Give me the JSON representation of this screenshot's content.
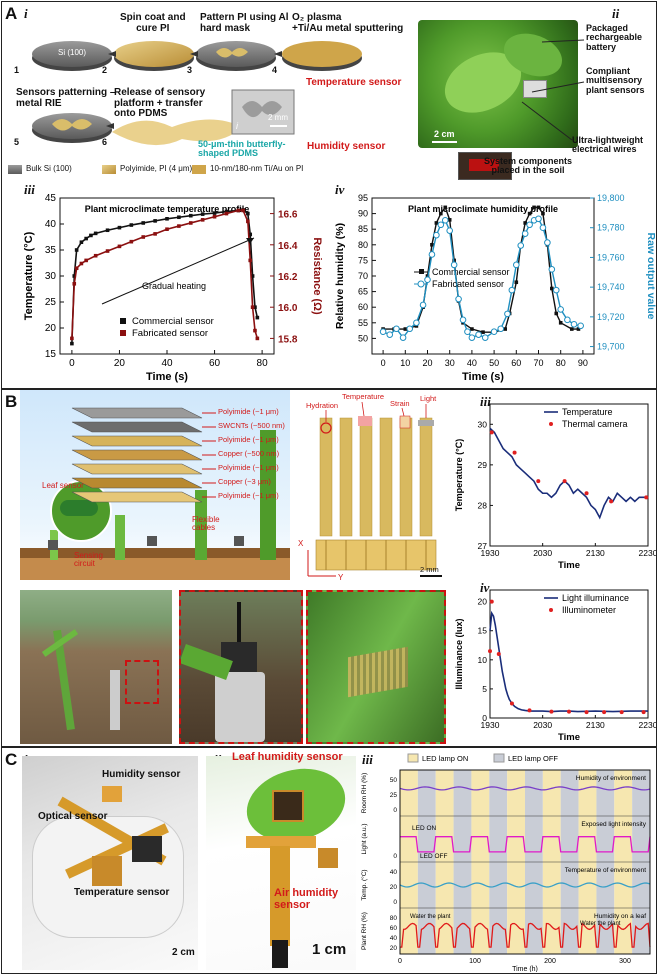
{
  "panelA": {
    "label": "A",
    "i": {
      "sub": "i",
      "steps": [
        {
          "num": "1",
          "text": "Si (100)"
        },
        {
          "num": "2",
          "text": "Spin coat and\ncure PI"
        },
        {
          "num": "3",
          "text": "Pattern PI using Al\nhard mask"
        },
        {
          "num": "4",
          "text": "O₂ plasma\n+Ti/Au metal sputtering"
        },
        {
          "num": "5",
          "text": "Sensors patterning –\nmetal RIE"
        },
        {
          "num": "6",
          "text": "Release of sensory\nplatform + transfer\nonto PDMS"
        }
      ],
      "temp_sensor": "Temperature sensor",
      "humidity_sensor": "Humidity sensor",
      "pdms": "50-μm-thin butterfly-\nshaped PDMS",
      "inset_label": "i",
      "scale": "2 mm",
      "legend": [
        "Bulk Si (100)",
        "Polyimide, PI (4 μm)",
        "10-nm/180-nm Ti/Au on PI"
      ]
    },
    "ii": {
      "sub": "ii",
      "labels": [
        "Packaged\nrechargeable\nbattery",
        "Compliant\nmultisensory\nplant sensors",
        "Ultra-lightweight\nelectrical wires",
        "System components\nplaced in the soil"
      ],
      "scale": "2 cm"
    },
    "iii": {
      "sub": "iii"
    },
    "iv": {
      "sub": "iv"
    }
  },
  "panelB": {
    "label": "B",
    "i": {
      "sub": "i",
      "layers": [
        "Polyimide (~1 μm)",
        "SWCNTs (~500 nm)",
        "Polyimide (~1 μm)",
        "Copper (~500 nm)",
        "Polyimide (~1 μm)",
        "Copper (~3 μm)",
        "Polyimide (~1 μm)"
      ],
      "leaf_sensor": "Leaf sensor",
      "flexible": "Flexible\ncables",
      "sensing": "Sensing\ncircuit",
      "sensor_tags": [
        "Hydration",
        "Temperature",
        "Strain",
        "Light"
      ],
      "axis_x": "X",
      "axis_y": "Y",
      "scale": "2 mm"
    },
    "ii": {
      "sub": "ii"
    },
    "iii": {
      "sub": "iii"
    },
    "iv": {
      "sub": "iv"
    }
  },
  "panelC": {
    "label": "C",
    "i": {
      "sub": "i",
      "humidity": "Humidity sensor",
      "optical": "Optical sensor",
      "temperature": "Temperature sensor",
      "scale": "2 cm"
    },
    "ii": {
      "sub": "ii",
      "leaf": "Leaf humidity sensor",
      "air": "Air humidity\nsensor",
      "scale": "1 cm"
    },
    "iii": {
      "sub": "iii",
      "legend_on": "LED lamp ON",
      "legend_off": "LED lamp OFF",
      "tracks": [
        "Humidity of environment",
        "Exposed light intensity",
        "Temperature of environment",
        "Humidity on a leaf"
      ],
      "annotations": [
        "LED ON",
        "LED OFF",
        "Water the plant",
        "Water the plant"
      ],
      "ylabels": [
        "Room RH (%)",
        "Light (a.u.)",
        "Temp. (°C)",
        "Plant RH (%)"
      ],
      "yticks": [
        [
          "50",
          "25",
          "0"
        ],
        [
          "0"
        ],
        [
          "40",
          "20",
          "0"
        ],
        [
          "80",
          "60",
          "40",
          "20"
        ]
      ],
      "xticks": [
        "0",
        "100",
        "200",
        "300"
      ],
      "xlabel": "Time (h)"
    }
  },
  "chart_data": [
    {
      "type": "line",
      "title": "Plant microclimate temperature profile",
      "xlabel": "Time (s)",
      "ylabel": "Temperature (°C)",
      "y2label": "Resistance (Ω)",
      "xlim": [
        -5,
        85
      ],
      "ylim": [
        15,
        45
      ],
      "y2lim": [
        15.7,
        16.7
      ],
      "xticks": [
        0,
        20,
        40,
        60,
        80
      ],
      "yticks": [
        15,
        20,
        25,
        30,
        35,
        40,
        45
      ],
      "y2ticks": [
        15.8,
        16.0,
        16.2,
        16.4,
        16.6
      ],
      "annotation": "Gradual heating",
      "legend_position": "bottom-right",
      "series": [
        {
          "name": "Commercial sensor",
          "color": "#111111",
          "axis": "left",
          "x": [
            0,
            1,
            2,
            4,
            6,
            8,
            10,
            15,
            20,
            25,
            30,
            35,
            40,
            45,
            50,
            55,
            60,
            65,
            70,
            72,
            74,
            75,
            76,
            77,
            78
          ],
          "y": [
            17,
            30,
            35,
            36.5,
            37.2,
            37.8,
            38.2,
            38.8,
            39.3,
            39.8,
            40.2,
            40.6,
            41,
            41.3,
            41.6,
            41.9,
            42.1,
            42.4,
            42.6,
            42.7,
            42,
            38,
            30,
            24,
            22
          ]
        },
        {
          "name": "Fabricated sensor",
          "color": "#8b1010",
          "axis": "right",
          "x": [
            0,
            1,
            2,
            4,
            6,
            10,
            15,
            20,
            25,
            30,
            35,
            40,
            45,
            50,
            55,
            60,
            65,
            70,
            72,
            74,
            75,
            76,
            77,
            78
          ],
          "y": [
            15.8,
            16.15,
            16.25,
            16.28,
            16.3,
            16.33,
            16.36,
            16.39,
            16.42,
            16.45,
            16.47,
            16.5,
            16.52,
            16.54,
            16.56,
            16.58,
            16.6,
            16.62,
            16.62,
            16.55,
            16.3,
            16.0,
            15.85,
            15.8
          ]
        }
      ]
    },
    {
      "type": "line",
      "title": "Plant microclimate humidity profile",
      "xlabel": "Time (s)",
      "ylabel": "Relative humidity (%)",
      "y2label": "Raw output value",
      "xlim": [
        -5,
        95
      ],
      "ylim": [
        45,
        95
      ],
      "y2lim": [
        19695,
        19800
      ],
      "xticks": [
        0,
        10,
        20,
        30,
        40,
        50,
        60,
        70,
        80,
        90
      ],
      "yticks": [
        50,
        55,
        60,
        65,
        70,
        75,
        80,
        85,
        90,
        95
      ],
      "y2ticks": [
        "19,700",
        "19,720",
        "19,740",
        "19,760",
        "19,780",
        "19,800"
      ],
      "legend_position": "center",
      "series": [
        {
          "name": "Commercial sensor",
          "color": "#111111",
          "axis": "left",
          "x": [
            0,
            5,
            10,
            15,
            18,
            20,
            22,
            24,
            26,
            28,
            30,
            32,
            34,
            36,
            40,
            45,
            50,
            55,
            57,
            60,
            62,
            64,
            66,
            68,
            70,
            72,
            74,
            76,
            78,
            80,
            85,
            88
          ],
          "y": [
            53,
            53,
            53,
            54,
            60,
            70,
            80,
            87,
            90,
            92,
            88,
            75,
            62,
            55,
            53,
            52,
            52,
            53,
            58,
            68,
            80,
            87,
            90,
            92,
            92,
            90,
            80,
            66,
            58,
            55,
            53,
            53
          ]
        },
        {
          "name": "Fabricated sensor",
          "color": "#1f8fc0",
          "axis": "right",
          "x": [
            0,
            3,
            6,
            9,
            12,
            15,
            18,
            20,
            22,
            24,
            26,
            28,
            30,
            32,
            34,
            36,
            38,
            40,
            43,
            46,
            50,
            53,
            56,
            58,
            60,
            62,
            64,
            66,
            68,
            70,
            72,
            74,
            76,
            78,
            80,
            83,
            86,
            89
          ],
          "y": [
            19710,
            19708,
            19712,
            19706,
            19712,
            19716,
            19728,
            19745,
            19762,
            19775,
            19782,
            19785,
            19778,
            19755,
            19732,
            19718,
            19710,
            19706,
            19708,
            19706,
            19710,
            19712,
            19722,
            19738,
            19755,
            19768,
            19776,
            19782,
            19785,
            19786,
            19780,
            19770,
            19752,
            19738,
            19725,
            19718,
            19715,
            19714
          ]
        }
      ]
    },
    {
      "type": "line",
      "xlabel": "Time",
      "ylabel": "Temperature (°C)",
      "xticks": [
        "1930",
        "2030",
        "2130",
        "2230"
      ],
      "yticks": [
        27,
        28,
        29,
        30
      ],
      "ylim": [
        27,
        30.5
      ],
      "legend_position": "top-right",
      "series": [
        {
          "name": "Temperature",
          "color": "#1a2d7a",
          "x": [
            0,
            5,
            10,
            15,
            20,
            25,
            30,
            35,
            40,
            45,
            50,
            55,
            60,
            65,
            70,
            75,
            80,
            85,
            90,
            95,
            100,
            105,
            110,
            115,
            120,
            125,
            130,
            135,
            140,
            145,
            150,
            155,
            160,
            165,
            170,
            175,
            180
          ],
          "y": [
            29.9,
            29.8,
            29.6,
            29.4,
            29.3,
            29.2,
            29.0,
            28.9,
            28.8,
            28.7,
            28.6,
            28.4,
            28.3,
            28.3,
            28.2,
            28.3,
            28.5,
            28.6,
            28.5,
            28.3,
            28.4,
            28.3,
            28.2,
            28.0,
            27.9,
            27.7,
            28.0,
            28.2,
            28.1,
            28.3,
            28.2,
            28.1,
            28.2,
            28.1,
            28.2,
            28.2,
            28.2
          ]
        },
        {
          "name": "Thermal camera",
          "color": "#e02020",
          "x": [
            2,
            28,
            55,
            85,
            110,
            138,
            178
          ],
          "y": [
            29.8,
            29.3,
            28.6,
            28.6,
            28.3,
            28.1,
            28.2
          ]
        }
      ]
    },
    {
      "type": "line",
      "xlabel": "Time",
      "ylabel": "Illuminance (lux)",
      "xticks": [
        "1930",
        "2030",
        "2130",
        "2230"
      ],
      "yticks": [
        0,
        5,
        10,
        15,
        20
      ],
      "ylim": [
        0,
        22
      ],
      "legend_position": "top-right",
      "series": [
        {
          "name": "Light illuminance",
          "color": "#1a2d7a",
          "x": [
            0,
            2,
            4,
            6,
            8,
            10,
            12,
            14,
            16,
            18,
            20,
            22,
            25,
            28,
            32,
            36,
            40,
            45,
            50,
            60,
            70,
            80,
            90,
            100,
            120,
            140,
            160,
            180
          ],
          "y": [
            15,
            18,
            17.5,
            16,
            14,
            12,
            10,
            8,
            6.5,
            5,
            4,
            3.2,
            2.5,
            2,
            1.6,
            1.4,
            1.3,
            1.2,
            1.2,
            1.2,
            1.1,
            1.2,
            1.2,
            1.1,
            1.2,
            1.1,
            1.2,
            1.2
          ]
        },
        {
          "name": "Illuminometer",
          "color": "#e02020",
          "x": [
            0,
            2,
            10,
            25,
            45,
            70,
            90,
            110,
            130,
            150,
            175
          ],
          "y": [
            11.5,
            20,
            11,
            2.5,
            1.3,
            1.1,
            1.1,
            1.0,
            1.0,
            1.0,
            1.0
          ]
        }
      ]
    }
  ]
}
